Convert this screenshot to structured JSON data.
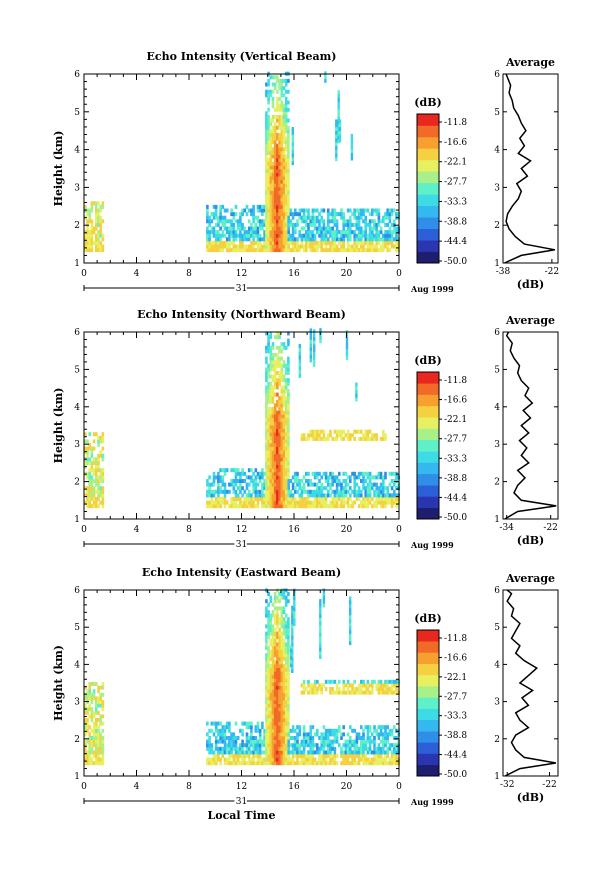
{
  "chart_data": [
    {
      "type": "heatmap",
      "title": "Echo Intensity (Vertical Beam)",
      "ylabel": "Height (km)",
      "ylim": [
        1,
        6
      ],
      "yticks": [
        "1",
        "2",
        "3",
        "4",
        "5",
        "6"
      ],
      "xlim": [
        0,
        24
      ],
      "xticks": [
        "0",
        "4",
        "8",
        "12",
        "16",
        "20",
        "0"
      ],
      "date_label": "31",
      "month_label": "Aug 1999",
      "colorbar": {
        "unit": "(dB)",
        "labels": [
          "-11.8",
          "-16.6",
          "-22.1",
          "-27.7",
          "-33.3",
          "-38.8",
          "-44.4",
          "-50.0"
        ]
      },
      "echo_regions": [
        {
          "t": [
            0.0,
            1.4
          ],
          "h": [
            1.3,
            2.6
          ],
          "peak_db": -20
        },
        {
          "t": [
            9.3,
            13.8
          ],
          "h": [
            1.3,
            2.5
          ],
          "peak_db": -30
        },
        {
          "t": [
            13.8,
            15.5
          ],
          "h": [
            1.3,
            6.0
          ],
          "peak_db": -11.8
        },
        {
          "t": [
            15.5,
            24.0
          ],
          "h": [
            1.3,
            2.4
          ],
          "peak_db": -30
        }
      ],
      "profile": {
        "title": "Average",
        "xlabel": "(dB)",
        "xticks": [
          "-38",
          "-22"
        ],
        "xlim": [
          -38,
          -20
        ],
        "yticks": [
          "1",
          "2",
          "3",
          "4",
          "5",
          "6"
        ],
        "height": [
          1.0,
          1.2,
          1.35,
          1.5,
          1.7,
          1.9,
          2.1,
          2.3,
          2.5,
          2.7,
          2.9,
          3.1,
          3.3,
          3.5,
          3.7,
          3.9,
          4.1,
          4.3,
          4.5,
          4.7,
          4.9,
          5.1,
          5.3,
          5.5,
          5.7,
          5.9,
          6.0
        ],
        "db": [
          -37.5,
          -32,
          -21,
          -31,
          -34,
          -36,
          -37,
          -36.5,
          -35,
          -33,
          -32,
          -33.5,
          -30,
          -32,
          -29,
          -33,
          -31,
          -32.5,
          -30.5,
          -32,
          -33,
          -34.5,
          -35,
          -36,
          -35.5,
          -36.5,
          -37
        ]
      }
    },
    {
      "type": "heatmap",
      "title": "Echo Intensity (Northward Beam)",
      "ylabel": "Height (km)",
      "ylim": [
        1,
        6
      ],
      "yticks": [
        "1",
        "2",
        "3",
        "4",
        "5",
        "6"
      ],
      "xlim": [
        0,
        24
      ],
      "xticks": [
        "0",
        "4",
        "8",
        "12",
        "16",
        "20",
        "0"
      ],
      "date_label": "31",
      "month_label": "Aug 1999",
      "colorbar": {
        "unit": "(dB)",
        "labels": [
          "-11.8",
          "-16.6",
          "-22.1",
          "-27.7",
          "-33.3",
          "-38.8",
          "-44.4",
          "-50.0"
        ]
      },
      "echo_regions": [
        {
          "t": [
            0.0,
            1.4
          ],
          "h": [
            1.3,
            3.3
          ],
          "peak_db": -20
        },
        {
          "t": [
            9.3,
            13.8
          ],
          "h": [
            1.3,
            2.3
          ],
          "peak_db": -30
        },
        {
          "t": [
            13.8,
            15.5
          ],
          "h": [
            1.3,
            6.0
          ],
          "peak_db": -11.8
        },
        {
          "t": [
            15.5,
            24.0
          ],
          "h": [
            1.3,
            2.2
          ],
          "peak_db": -30
        },
        {
          "t": [
            16.5,
            23.0
          ],
          "h": [
            3.1,
            3.3
          ],
          "peak_db": -33
        }
      ],
      "profile": {
        "title": "Average",
        "xlabel": "(dB)",
        "xticks": [
          "-34",
          "-22"
        ],
        "xlim": [
          -35,
          -20
        ],
        "yticks": [
          "1",
          "2",
          "3",
          "4",
          "5",
          "6"
        ],
        "height": [
          1.0,
          1.2,
          1.35,
          1.5,
          1.7,
          1.9,
          2.1,
          2.3,
          2.5,
          2.7,
          2.9,
          3.1,
          3.3,
          3.5,
          3.7,
          3.9,
          4.1,
          4.3,
          4.5,
          4.7,
          4.9,
          5.1,
          5.3,
          5.5,
          5.7,
          5.9,
          6.0
        ],
        "db": [
          -34.5,
          -31,
          -20.5,
          -30,
          -32,
          -31,
          -29,
          -31,
          -28,
          -30,
          -28.5,
          -30.5,
          -28,
          -30,
          -27.5,
          -29.5,
          -27,
          -29,
          -28,
          -30,
          -31,
          -30.5,
          -32,
          -33,
          -32.5,
          -34,
          -33.5
        ]
      }
    },
    {
      "type": "heatmap",
      "title": "Echo Intensity (Eastward Beam)",
      "ylabel": "Height (km)",
      "ylim": [
        1,
        6
      ],
      "yticks": [
        "1",
        "2",
        "3",
        "4",
        "5",
        "6"
      ],
      "xlim": [
        0,
        24
      ],
      "xticks": [
        "0",
        "4",
        "8",
        "12",
        "16",
        "20",
        "0"
      ],
      "xlabel": "Local Time",
      "date_label": "31",
      "month_label": "Aug 1999",
      "colorbar": {
        "unit": "(dB)",
        "labels": [
          "-11.8",
          "-16.6",
          "-22.1",
          "-27.7",
          "-33.3",
          "-38.8",
          "-44.4",
          "-50.0"
        ]
      },
      "echo_regions": [
        {
          "t": [
            0.0,
            1.4
          ],
          "h": [
            1.3,
            3.5
          ],
          "peak_db": -20
        },
        {
          "t": [
            9.3,
            13.8
          ],
          "h": [
            1.3,
            2.4
          ],
          "peak_db": -30
        },
        {
          "t": [
            13.8,
            15.5
          ],
          "h": [
            1.3,
            6.0
          ],
          "peak_db": -11.8
        },
        {
          "t": [
            15.5,
            24.0
          ],
          "h": [
            1.3,
            2.3
          ],
          "peak_db": -30
        },
        {
          "t": [
            16.5,
            24.0
          ],
          "h": [
            3.2,
            3.5
          ],
          "peak_db": -30
        }
      ],
      "profile": {
        "title": "Average",
        "xlabel": "(dB)",
        "xticks": [
          "-32",
          "-22"
        ],
        "xlim": [
          -33,
          -20
        ],
        "yticks": [
          "1",
          "2",
          "3",
          "4",
          "5",
          "6"
        ],
        "height": [
          1.0,
          1.2,
          1.35,
          1.5,
          1.7,
          1.9,
          2.1,
          2.3,
          2.5,
          2.7,
          2.9,
          3.1,
          3.3,
          3.5,
          3.7,
          3.9,
          4.1,
          4.3,
          4.5,
          4.7,
          4.9,
          5.1,
          5.3,
          5.5,
          5.7,
          5.9,
          6.0
        ],
        "db": [
          -32.5,
          -29,
          -20.5,
          -28,
          -30,
          -31,
          -30,
          -27,
          -29,
          -30,
          -27,
          -28.5,
          -26,
          -29,
          -27,
          -25,
          -28,
          -30,
          -29,
          -31,
          -30,
          -29,
          -31,
          -30.5,
          -32,
          -31,
          -32
        ]
      }
    }
  ],
  "palette": [
    "#1e1e6e",
    "#2a36b0",
    "#2c5fd8",
    "#2f8fe8",
    "#33b8f0",
    "#3ddbe6",
    "#5ef0c6",
    "#a8f08a",
    "#e6f060",
    "#f5d040",
    "#f7a030",
    "#f26a28",
    "#e8281e"
  ]
}
